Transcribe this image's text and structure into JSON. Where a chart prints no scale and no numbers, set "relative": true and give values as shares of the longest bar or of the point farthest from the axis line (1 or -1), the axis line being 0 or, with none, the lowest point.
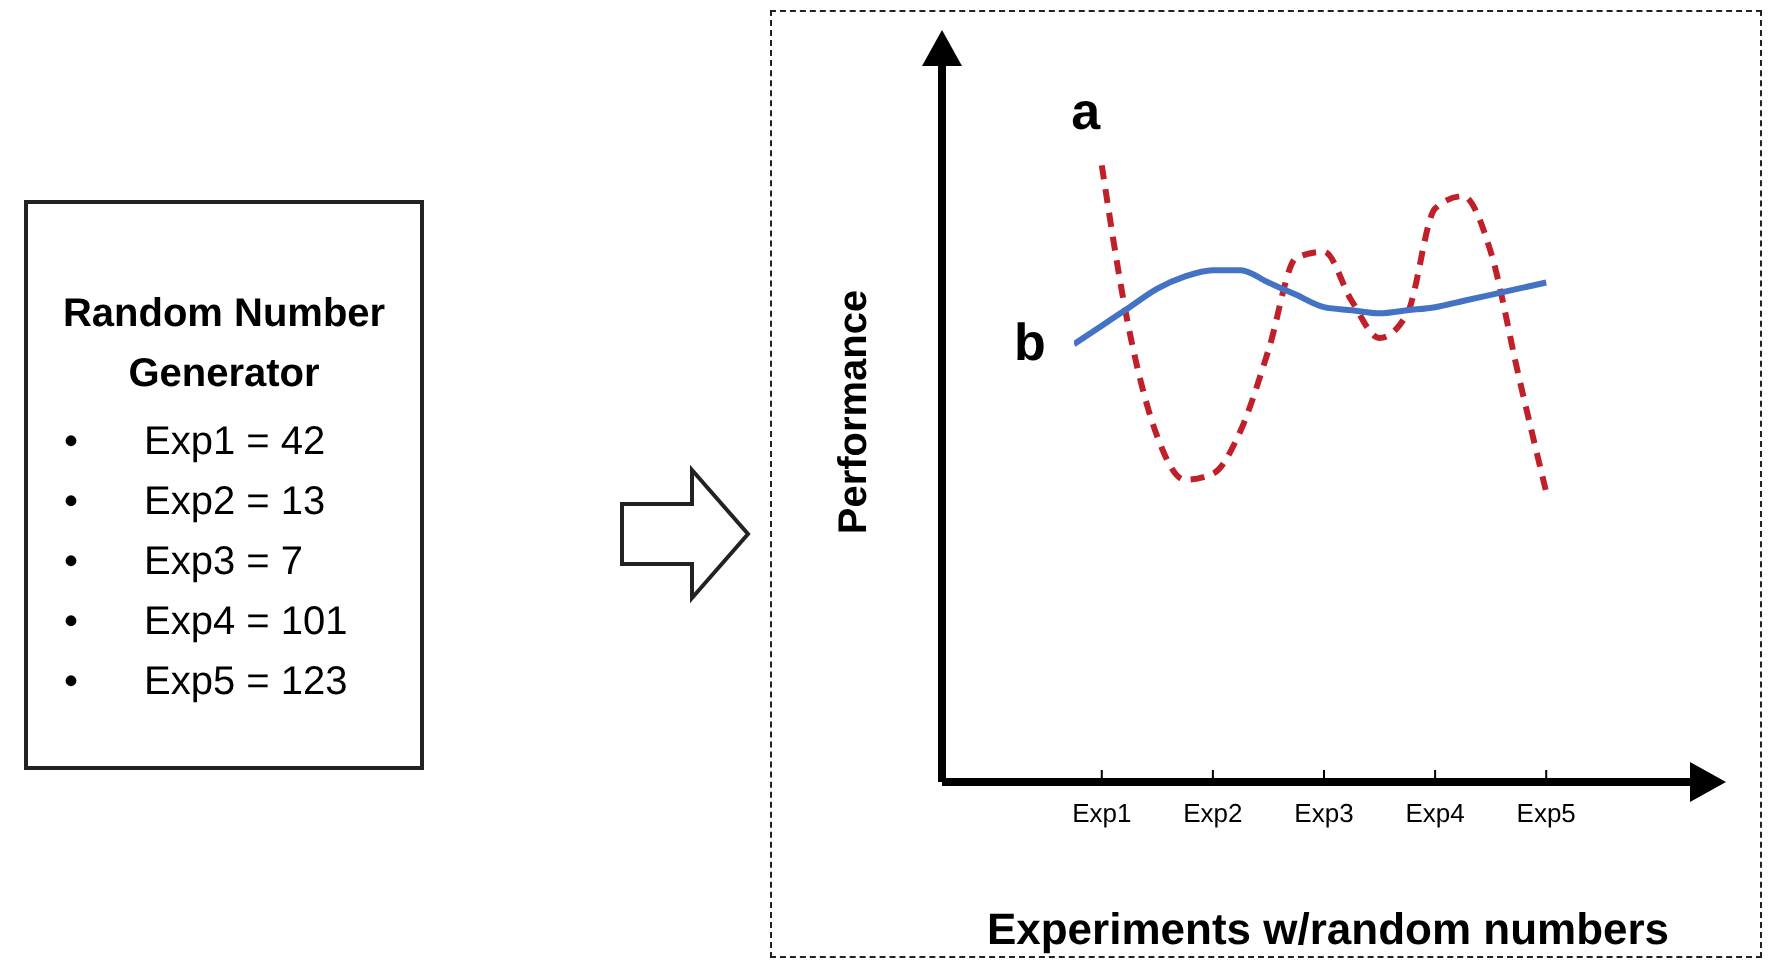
{
  "chart_data": [
    {
      "type": "other",
      "title": "Random Number Generator",
      "annotations": [
        "• Exp1 = 42",
        "• Exp2 = 13",
        "• Exp3 = 7",
        "• Exp4 = 101",
        "• Exp5 = 123"
      ]
    },
    {
      "type": "line",
      "relative": true,
      "xlabel": "Experiments w/random numbers",
      "ylabel": "Performance",
      "categories": [
        null,
        "Exp1",
        null,
        null,
        null,
        "Exp2",
        null,
        null,
        null,
        "Exp3",
        null,
        null,
        null,
        "Exp4",
        null,
        null,
        null,
        "Exp5",
        null
      ],
      "grid": false,
      "legend": false,
      "marker": "none",
      "series": [
        {
          "name": "a",
          "color": "#c0202a",
          "line_style": "dashed",
          "values": [
            null,
            1.0,
            0.73,
            0.56,
            0.49,
            0.5,
            0.57,
            0.7,
            0.85,
            0.86,
            0.78,
            0.72,
            0.76,
            0.93,
            0.95,
            0.86,
            0.66,
            0.47,
            null
          ]
        },
        {
          "name": "b",
          "color": "#4472c4",
          "line_style": "solid",
          "values": [
            0.71,
            0.74,
            0.77,
            0.8,
            0.82,
            0.83,
            0.83,
            0.81,
            0.79,
            0.77,
            0.765,
            0.76,
            0.765,
            0.77,
            0.78,
            0.79,
            0.8,
            0.81,
            null
          ]
        }
      ]
    }
  ]
}
